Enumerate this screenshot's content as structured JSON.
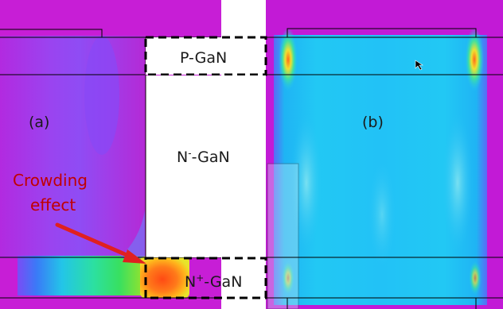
{
  "panels": {
    "a": {
      "label": "(a)",
      "annotation_line1": "Crowding",
      "annotation_line2": "effect"
    },
    "b": {
      "label": "(b)"
    }
  },
  "layers": {
    "top": {
      "name": "P-GaN"
    },
    "middle": {
      "name": "N",
      "superscript": "-",
      "suffix": "-GaN"
    },
    "bottom": {
      "name": "N",
      "superscript": "+",
      "suffix": "-GaN"
    }
  },
  "colors": {
    "background_field": "#c21ad6",
    "field_low": "#8a49f5",
    "field_cyan": "#1fc6f6",
    "field_hot": "#ff4a1a",
    "arrow": "#e02020",
    "dashed_outline": "#000000"
  }
}
